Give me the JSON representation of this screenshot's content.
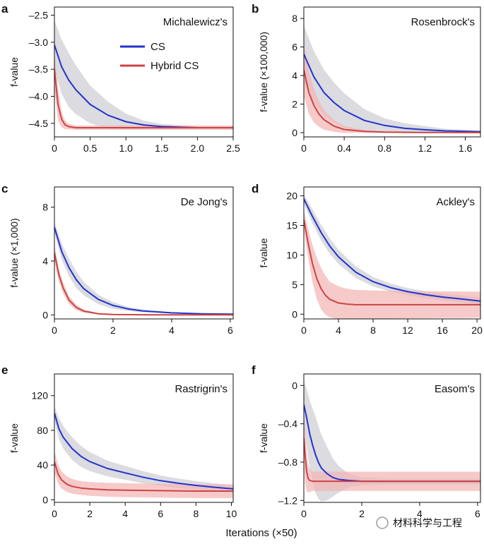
{
  "xlabel": "Iterations (×50)",
  "watermark": "材料科学与工程",
  "colors": {
    "cs": "#2233cc",
    "hybrid": "#cc4444",
    "cs_band": "#cfcfd6",
    "hybrid_band": "#f4b3b3",
    "axis": "#111111"
  },
  "legend": {
    "cs": "CS",
    "hybrid": "Hybrid CS"
  },
  "chart_data": [
    {
      "type": "line",
      "letter": "a",
      "title": "Michalewicz's",
      "ylabel": "f-value",
      "xlim": [
        0,
        2.5
      ],
      "ylim": [
        -4.75,
        -2.35
      ],
      "xticks": [
        0,
        0.5,
        1.0,
        1.5,
        2.0,
        2.5
      ],
      "xtick_labels": [
        "0",
        "0.5",
        "1.0",
        "1.5",
        "2.0",
        "2.5"
      ],
      "yticks": [
        -4.5,
        -4.0,
        -3.5,
        -3.0,
        -2.5
      ],
      "ytick_labels": [
        "–4.5",
        "–4.0",
        "–3.5",
        "–3.0",
        "–2.5"
      ],
      "series": [
        {
          "name": "CS",
          "x": [
            0,
            0.1,
            0.2,
            0.3,
            0.5,
            0.75,
            1.0,
            1.25,
            1.5,
            2.0,
            2.5
          ],
          "y": [
            -3.05,
            -3.45,
            -3.7,
            -3.88,
            -4.15,
            -4.35,
            -4.47,
            -4.53,
            -4.56,
            -4.58,
            -4.58
          ],
          "band": [
            0.45,
            0.5,
            0.5,
            0.45,
            0.35,
            0.25,
            0.15,
            0.08,
            0.05,
            0.03,
            0.03
          ]
        },
        {
          "name": "Hybrid CS",
          "x": [
            0,
            0.05,
            0.1,
            0.15,
            0.2,
            0.3,
            0.5,
            1.0,
            1.5,
            2.0,
            2.5
          ],
          "y": [
            -3.5,
            -4.15,
            -4.42,
            -4.53,
            -4.56,
            -4.58,
            -4.58,
            -4.58,
            -4.58,
            -4.58,
            -4.58
          ],
          "band": [
            0.35,
            0.3,
            0.15,
            0.08,
            0.05,
            0.04,
            0.04,
            0.04,
            0.04,
            0.04,
            0.04
          ]
        }
      ]
    },
    {
      "type": "line",
      "letter": "b",
      "title": "Rosenbrock's",
      "ylabel": "f-value (×100,000)",
      "xlim": [
        0,
        1.75
      ],
      "ylim": [
        -0.3,
        8.8
      ],
      "xticks": [
        0,
        0.4,
        0.8,
        1.2,
        1.6
      ],
      "xtick_labels": [
        "0",
        "0.4",
        "0.8",
        "1.2",
        "1.6"
      ],
      "yticks": [
        0,
        2,
        4,
        6,
        8
      ],
      "ytick_labels": [
        "0",
        "2",
        "4",
        "6",
        "8"
      ],
      "series": [
        {
          "name": "CS",
          "x": [
            0,
            0.1,
            0.2,
            0.3,
            0.4,
            0.6,
            0.8,
            1.0,
            1.2,
            1.4,
            1.75
          ],
          "y": [
            5.5,
            3.9,
            2.8,
            2.1,
            1.55,
            0.85,
            0.5,
            0.3,
            0.2,
            0.12,
            0.06
          ],
          "band": [
            2.0,
            1.8,
            1.6,
            1.4,
            1.2,
            0.8,
            0.5,
            0.35,
            0.25,
            0.15,
            0.1
          ]
        },
        {
          "name": "Hybrid CS",
          "x": [
            0,
            0.05,
            0.1,
            0.15,
            0.2,
            0.3,
            0.4,
            0.6,
            0.8,
            1.2,
            1.75
          ],
          "y": [
            4.4,
            2.8,
            1.9,
            1.3,
            0.9,
            0.45,
            0.22,
            0.08,
            0.03,
            0.01,
            0.0
          ],
          "band": [
            1.8,
            1.5,
            1.2,
            0.9,
            0.7,
            0.4,
            0.25,
            0.1,
            0.05,
            0.02,
            0.02
          ]
        }
      ]
    },
    {
      "type": "line",
      "letter": "c",
      "title": "De Jong's",
      "ylabel": "f-value (×1,000)",
      "xlim": [
        0,
        6.1
      ],
      "ylim": [
        -0.3,
        9.5
      ],
      "xticks": [
        0,
        2,
        4,
        6
      ],
      "xtick_labels": [
        "0",
        "2",
        "4",
        "6"
      ],
      "yticks": [
        0,
        4,
        8
      ],
      "ytick_labels": [
        "0",
        "4",
        "8"
      ],
      "series": [
        {
          "name": "CS",
          "x": [
            0,
            0.25,
            0.5,
            0.75,
            1.0,
            1.5,
            2.0,
            2.5,
            3.0,
            4.0,
            5.0,
            6.1
          ],
          "y": [
            6.5,
            4.7,
            3.5,
            2.6,
            1.95,
            1.15,
            0.7,
            0.45,
            0.3,
            0.15,
            0.08,
            0.05
          ],
          "band": [
            0.4,
            0.6,
            0.65,
            0.6,
            0.5,
            0.35,
            0.25,
            0.15,
            0.1,
            0.05,
            0.04,
            0.03
          ]
        },
        {
          "name": "Hybrid CS",
          "x": [
            0,
            0.15,
            0.3,
            0.5,
            0.75,
            1.0,
            1.5,
            2.0,
            3.0,
            4.0,
            6.1
          ],
          "y": [
            4.6,
            3.0,
            2.0,
            1.1,
            0.55,
            0.28,
            0.08,
            0.03,
            0.01,
            0.0,
            0.0
          ],
          "band": [
            0.6,
            0.5,
            0.4,
            0.3,
            0.2,
            0.12,
            0.05,
            0.03,
            0.02,
            0.02,
            0.02
          ]
        }
      ]
    },
    {
      "type": "line",
      "letter": "d",
      "title": "Ackley's",
      "ylabel": "f-value",
      "xlim": [
        0,
        20.4
      ],
      "ylim": [
        -0.8,
        21.5
      ],
      "xticks": [
        0,
        4,
        8,
        12,
        16,
        20
      ],
      "xtick_labels": [
        "0",
        "4",
        "8",
        "12",
        "16",
        "20"
      ],
      "yticks": [
        0,
        5,
        10,
        15,
        20
      ],
      "ytick_labels": [
        "0",
        "5",
        "10",
        "15",
        "20"
      ],
      "series": [
        {
          "name": "CS",
          "x": [
            0,
            1,
            2,
            3,
            4,
            6,
            8,
            10,
            12,
            14,
            16,
            18,
            20.4
          ],
          "y": [
            19.5,
            16.5,
            13.8,
            11.5,
            9.7,
            7.1,
            5.5,
            4.5,
            3.8,
            3.3,
            2.9,
            2.6,
            2.2
          ],
          "band": [
            0.8,
            1.2,
            1.3,
            1.3,
            1.2,
            1.0,
            0.8,
            0.7,
            0.6,
            0.6,
            0.6,
            0.6,
            0.6
          ]
        },
        {
          "name": "Hybrid CS",
          "x": [
            0,
            0.5,
            1,
            1.5,
            2,
            2.5,
            3,
            4,
            5,
            6,
            8,
            12,
            20.4
          ],
          "y": [
            16.0,
            12.0,
            8.5,
            6.0,
            4.3,
            3.2,
            2.5,
            1.9,
            1.7,
            1.6,
            1.6,
            1.6,
            1.6
          ],
          "band": [
            1.5,
            2.5,
            3.2,
            3.5,
            3.5,
            3.3,
            3.0,
            2.8,
            2.6,
            2.5,
            2.4,
            2.3,
            2.2
          ]
        }
      ]
    },
    {
      "type": "line",
      "letter": "e",
      "title": "Rastrigrin's",
      "ylabel": "f-value",
      "xlim": [
        0,
        10.1
      ],
      "ylim": [
        -3,
        145
      ],
      "xticks": [
        0,
        2,
        4,
        6,
        8,
        10
      ],
      "xtick_labels": [
        "0",
        "2",
        "4",
        "6",
        "8",
        "10"
      ],
      "yticks": [
        0,
        40,
        80,
        120
      ],
      "ytick_labels": [
        "0",
        "40",
        "80",
        "120"
      ],
      "series": [
        {
          "name": "CS",
          "x": [
            0,
            0.25,
            0.5,
            1,
            1.5,
            2,
            3,
            4,
            5,
            6,
            7,
            8,
            9,
            10.1
          ],
          "y": [
            100,
            82,
            72,
            59,
            50,
            44,
            36,
            31,
            26,
            22,
            19,
            16.5,
            14.5,
            12.5
          ],
          "band": [
            8,
            12,
            13,
            13,
            12,
            11,
            9,
            8,
            7,
            6,
            5.5,
            5,
            4.5,
            4
          ]
        },
        {
          "name": "Hybrid CS",
          "x": [
            0,
            0.2,
            0.4,
            0.7,
            1,
            1.5,
            2,
            3,
            4,
            6,
            8,
            10.1
          ],
          "y": [
            44,
            30,
            23,
            18,
            15.5,
            13.5,
            12.5,
            11.5,
            11,
            10.5,
            10,
            10
          ],
          "band": [
            12,
            11,
            10,
            9,
            8.5,
            8,
            8,
            8,
            8,
            8,
            8,
            8
          ]
        }
      ]
    },
    {
      "type": "line",
      "letter": "f",
      "title": "Easom's",
      "ylabel": "f-value",
      "xlim": [
        0,
        6.1
      ],
      "ylim": [
        -1.22,
        0.12
      ],
      "xticks": [
        0,
        2,
        4,
        6
      ],
      "xtick_labels": [
        "0",
        "2",
        "4",
        "6"
      ],
      "yticks": [
        -1.2,
        -0.8,
        -0.4,
        0
      ],
      "ytick_labels": [
        "–1.2",
        "–0.8",
        "–0.4",
        "0"
      ],
      "series": [
        {
          "name": "CS",
          "x": [
            0,
            0.1,
            0.2,
            0.3,
            0.4,
            0.5,
            0.6,
            0.8,
            1.0,
            1.2,
            1.5,
            2.0,
            3.0,
            6.1
          ],
          "y": [
            -0.2,
            -0.34,
            -0.5,
            -0.62,
            -0.72,
            -0.8,
            -0.86,
            -0.92,
            -0.96,
            -0.98,
            -0.99,
            -1.0,
            -1.0,
            -1.0
          ],
          "band": [
            0.25,
            0.3,
            0.35,
            0.38,
            0.4,
            0.38,
            0.35,
            0.28,
            0.2,
            0.14,
            0.08,
            0.04,
            0.03,
            0.03
          ]
        },
        {
          "name": "Hybrid CS",
          "x": [
            0,
            0.05,
            0.1,
            0.15,
            0.2,
            0.3,
            0.5,
            1.0,
            2.0,
            4.0,
            6.1
          ],
          "y": [
            -0.55,
            -0.75,
            -0.9,
            -0.97,
            -0.99,
            -1.0,
            -1.0,
            -1.0,
            -1.0,
            -1.0,
            -1.0
          ],
          "band": [
            0.3,
            0.28,
            0.2,
            0.15,
            0.12,
            0.1,
            0.1,
            0.1,
            0.1,
            0.1,
            0.1
          ]
        }
      ]
    }
  ]
}
